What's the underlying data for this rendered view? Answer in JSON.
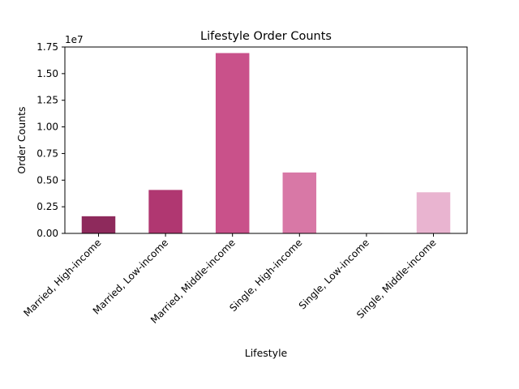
{
  "chart_data": {
    "type": "bar",
    "title": "Lifestyle Order Counts",
    "xlabel": "Lifestyle",
    "ylabel": "Order Counts",
    "y_multiplier_label": "1e7",
    "categories": [
      "Married, High-income",
      "Married, Low-income",
      "Married, Middle-income",
      "Single, High-income",
      "Single, Low-income",
      "Single, Middle-income"
    ],
    "values": [
      1610000,
      4080000,
      16930000,
      5720000,
      40000,
      3860000
    ],
    "colors": [
      "#8e2a5c",
      "#b03771",
      "#c9518a",
      "#d878a6",
      "#e398c0",
      "#e9b4d0"
    ],
    "ylim": [
      0,
      17500000
    ],
    "yticks": [
      0,
      2500000,
      5000000,
      7500000,
      10000000,
      12500000,
      15000000,
      17500000
    ],
    "ytick_labels": [
      "0.00",
      "0.25",
      "0.50",
      "0.75",
      "1.00",
      "1.25",
      "1.50",
      "1.75"
    ],
    "grid": false,
    "legend": "none"
  }
}
